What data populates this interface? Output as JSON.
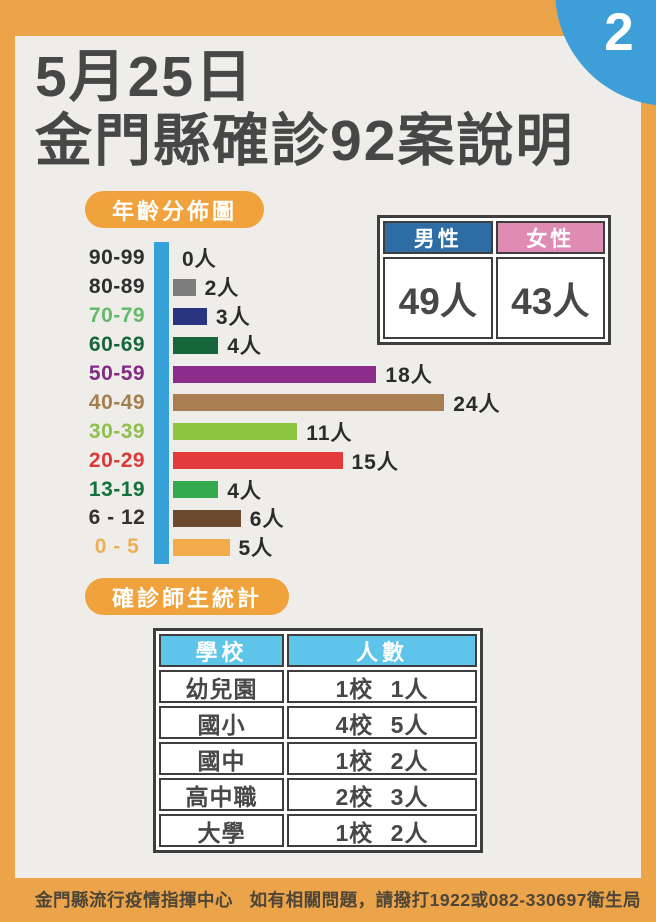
{
  "badge": {
    "number": "2"
  },
  "title": {
    "line1": "5月25日",
    "line2": "金門縣確診92案說明"
  },
  "chart_data": {
    "type": "bar",
    "orientation": "horizontal",
    "title": "年齡分佈圖",
    "categories": [
      "90-99",
      "80-89",
      "70-79",
      "60-69",
      "50-59",
      "40-49",
      "30-39",
      "20-29",
      "13-19",
      "6 - 12",
      "0 - 5"
    ],
    "values": [
      0,
      2,
      3,
      4,
      18,
      24,
      11,
      15,
      4,
      6,
      5
    ],
    "unit": "人",
    "value_labels": [
      "0人",
      "2人",
      "3人",
      "4人",
      "18人",
      "24人",
      "11人",
      "15人",
      "4人",
      "6人",
      "5人"
    ],
    "bar_colors": [
      "#36A0D9",
      "#7D7D7D",
      "#28367F",
      "#17663B",
      "#8C2D8C",
      "#A87E52",
      "#8CC63F",
      "#E33B3B",
      "#33A94E",
      "#6C4A2D",
      "#F3AC4C"
    ],
    "label_colors": [
      "#2E2E2E",
      "#2E2E2E",
      "#66B86B",
      "#17663B",
      "#812B81",
      "#A37E4F",
      "#8FBF4F",
      "#D93B3B",
      "#14713B",
      "#38302A",
      "#EFAF58"
    ],
    "axis_color": "#36A0D9",
    "legend_position": "none",
    "grid": false
  },
  "gender_table": {
    "headers": [
      {
        "label": "男性",
        "color": "#2E6DA4"
      },
      {
        "label": "女性",
        "color": "#DE8CB4"
      }
    ],
    "values": [
      "49人",
      "43人"
    ]
  },
  "school_section": {
    "title": "確診師生統計",
    "table": {
      "headers": [
        "學校",
        "人數"
      ],
      "rows": [
        [
          "幼兒園",
          "1校 1人"
        ],
        [
          "國小",
          "4校 5人"
        ],
        [
          "國中",
          "1校 2人"
        ],
        [
          "高中職",
          "2校 3人"
        ],
        [
          "大學",
          "1校 2人"
        ]
      ]
    }
  },
  "footer": {
    "left": "金門縣流行疫情指揮中心",
    "right": "如有相關問題，請撥打1922或082-330697衛生局"
  },
  "colors": {
    "frame_orange": "#EBA44A",
    "pill_orange": "#F0A33C",
    "inner_gray": "#EFEDEA",
    "badge_blue": "#3D9ED8",
    "title_dark": "#474747",
    "table_border": "#3E3E3E",
    "school_header_blue": "#5FC4E9"
  }
}
